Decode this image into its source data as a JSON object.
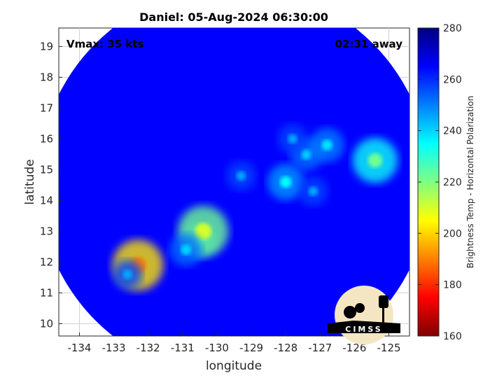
{
  "chart_data": {
    "type": "heatmap",
    "title": "Daniel: 05-Aug-2024 06:30:00",
    "xlabel": "longitude",
    "ylabel": "latitude",
    "xlim": [
      -134.6,
      -124.4
    ],
    "ylim": [
      9.6,
      19.6
    ],
    "xticks": [
      -134,
      -133,
      -132,
      -131,
      -130,
      -129,
      -128,
      -127,
      -126,
      -125
    ],
    "yticks": [
      10,
      11,
      12,
      13,
      14,
      15,
      16,
      17,
      18,
      19
    ],
    "grid": true,
    "annotations": {
      "left": "Vmax: 35 kts",
      "right": "02:31 away"
    },
    "colorbar": {
      "label": "Brightness Temp - Horizontal Polarization",
      "range": [
        160,
        280
      ],
      "ticks": [
        160,
        180,
        200,
        220,
        240,
        260,
        280
      ],
      "colormap": "jet"
    },
    "swath": {
      "shape": "circle",
      "center": [
        -129.5,
        14.6
      ],
      "radius_deg": 5.7
    },
    "background_value": 265,
    "features": [
      {
        "lon": -130.5,
        "lat": 12.7,
        "value": 238
      },
      {
        "lon": -130.4,
        "lat": 13.0,
        "value": 210
      },
      {
        "lon": -130.9,
        "lat": 12.4,
        "value": 240
      },
      {
        "lon": -132.3,
        "lat": 11.9,
        "value": 190
      },
      {
        "lon": -132.6,
        "lat": 11.6,
        "value": 245
      },
      {
        "lon": -128.0,
        "lat": 14.6,
        "value": 235
      },
      {
        "lon": -127.4,
        "lat": 15.5,
        "value": 240
      },
      {
        "lon": -126.8,
        "lat": 15.8,
        "value": 238
      },
      {
        "lon": -125.4,
        "lat": 15.3,
        "value": 222
      },
      {
        "lon": -127.2,
        "lat": 14.3,
        "value": 245
      },
      {
        "lon": -129.3,
        "lat": 14.8,
        "value": 245
      },
      {
        "lon": -127.8,
        "lat": 16.0,
        "value": 245
      }
    ]
  },
  "logo": {
    "text": "CIMSS",
    "bg": "#f5e6c3",
    "fg": "#000000"
  }
}
